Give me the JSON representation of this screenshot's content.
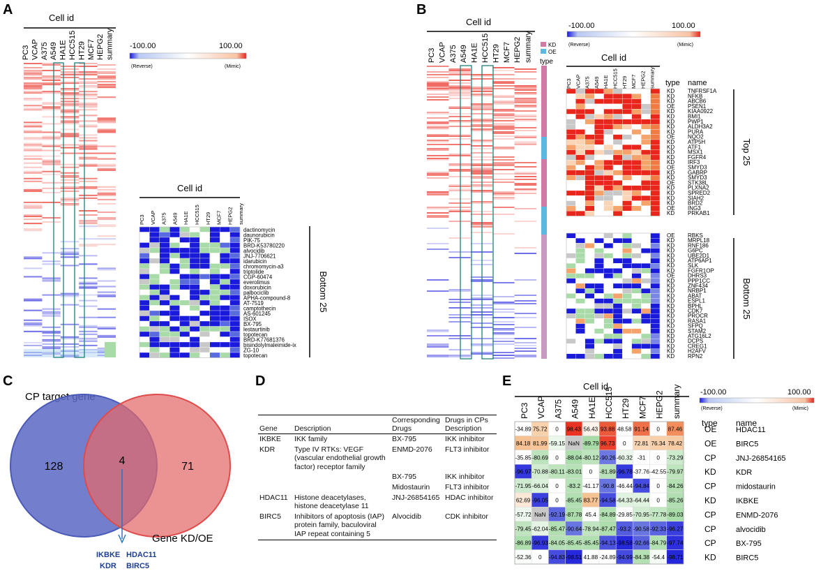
{
  "panels": {
    "A": "A",
    "B": "B",
    "C": "C",
    "D": "D",
    "E": "E"
  },
  "cell_id_label": "Cell id",
  "cell_lines": [
    "PC3",
    "VCAP",
    "A375",
    "A549",
    "HA1E",
    "HCC515",
    "HT29",
    "MCF7",
    "HEPG2",
    "summary"
  ],
  "colorbar": {
    "min_label": "-100.00",
    "max_label": "100.00",
    "min_note": "(Reverse)",
    "max_note": "(Mimic)",
    "low_color": "#1a1adb",
    "mid_color": "#ffffff",
    "high_color": "#e8261b"
  },
  "panel_a": {
    "bottom_label": "Bottom 25",
    "drugs": [
      "dactinomycin",
      "daunorubicin",
      "PIK-75",
      "BRD-K53780220",
      "alvocidib",
      "JNJ-7706621",
      "idarubicin",
      "chromomycin-a3",
      "triptolide",
      "CGP-60474",
      "everolimus",
      "doxorubicin",
      "palbociclib",
      "APHA-compound-8",
      "AT-7519",
      "camptothecin",
      "AS-601245",
      "ISOX",
      "BX-795",
      "lestaurtinib",
      "topotecan",
      "BRD-K77681376",
      "bisindolylmaleimide-ix",
      "ZG-10",
      "topotecan"
    ]
  },
  "panel_b": {
    "legend": [
      {
        "label": "KD",
        "color": "#d27aa6"
      },
      {
        "label": "OE",
        "color": "#5bb8e0"
      }
    ],
    "type_label": "type",
    "name_header": "name",
    "top_label": "Top 25",
    "bottom_label": "Bottom 25",
    "top_genes": [
      [
        "KD",
        "TNFRSF1A"
      ],
      [
        "KD",
        "NFKB"
      ],
      [
        "KD",
        "ABCB6"
      ],
      [
        "OE",
        "PSEN1"
      ],
      [
        "KD",
        "KIAA0922"
      ],
      [
        "KD",
        "BMI1"
      ],
      [
        "KD",
        "PWP1"
      ],
      [
        "KD",
        "ALDH3A2"
      ],
      [
        "KD",
        "PURA"
      ],
      [
        "OE",
        "NQO2"
      ],
      [
        "KD",
        "ATP5H"
      ],
      [
        "KD",
        "ATF1"
      ],
      [
        "KD",
        "MSX1"
      ],
      [
        "KD",
        "FGFR4"
      ],
      [
        "KD",
        "IRF3"
      ],
      [
        "OE",
        "SMYD3"
      ],
      [
        "KD",
        "GABRP"
      ],
      [
        "KD",
        "SMYD3"
      ],
      [
        "OE",
        "STK38L"
      ],
      [
        "KD",
        "PLXNA2"
      ],
      [
        "KD",
        "SPRED2"
      ],
      [
        "KD",
        "SIAH2"
      ],
      [
        "KD",
        "BRD2"
      ],
      [
        "OE",
        "ING3"
      ],
      [
        "KD",
        "PRKAB1"
      ]
    ],
    "bottom_genes": [
      [
        "OE",
        "RBKS"
      ],
      [
        "KD",
        "MRPL18"
      ],
      [
        "KD",
        "RNF186"
      ],
      [
        "KD",
        "G6PC"
      ],
      [
        "KD",
        "UBE2D1"
      ],
      [
        "KD",
        "ATP6AP1"
      ],
      [
        "KD",
        "SLK"
      ],
      [
        "KD",
        "FGFR1OP"
      ],
      [
        "OE",
        "DHRS3"
      ],
      [
        "KD",
        "PPP1CC"
      ],
      [
        "KD",
        "ZNF434"
      ],
      [
        "KD",
        "NRBP1"
      ],
      [
        "KD",
        "ABAT"
      ],
      [
        "KD",
        "ESPL1"
      ],
      [
        "KD",
        "BPHL"
      ],
      [
        "KD",
        "CDK7"
      ],
      [
        "KD",
        "PROCR"
      ],
      [
        "KD",
        "RASA1"
      ],
      [
        "KD",
        "SFPQ"
      ],
      [
        "KD",
        "STAM2"
      ],
      [
        "KD",
        "ATG16L2"
      ],
      [
        "KD",
        "DCPS"
      ],
      [
        "KD",
        "CREG1"
      ],
      [
        "KD",
        "H2AFV"
      ],
      [
        "KD",
        "RPN2"
      ]
    ]
  },
  "panel_c": {
    "left_label": "CP target gene",
    "right_label": "Gene KD/OE",
    "left_only": "128",
    "overlap": "4",
    "right_only": "71",
    "genes": [
      "IKBKE",
      "HDAC11",
      "KDR",
      "BIRC5"
    ],
    "left_color": "#5a68c4",
    "right_color": "#e36a6a"
  },
  "panel_d": {
    "headers": {
      "gene": "Gene",
      "description": "Description",
      "drugs": "Corresponding Drugs",
      "cps": "Drugs in CPs Description"
    },
    "rows": [
      {
        "gene": "IKBKE",
        "description": "IKK family",
        "drugs": "BX-795",
        "cps": "IKK inhibitor"
      },
      {
        "gene": "KDR",
        "description": "Type IV RTKs: VEGF (vascular endothelial growth factor) receptor family",
        "drugs": "ENMD-2076",
        "cps": "FLT3 inhibitor"
      },
      {
        "gene": "",
        "description": "",
        "drugs": "BX-795",
        "cps": "IKK inhibitor"
      },
      {
        "gene": "",
        "description": "",
        "drugs": "Midostaurin",
        "cps": "FLT3 inhibitor"
      },
      {
        "gene": "HDAC11",
        "description": "Histone deacetylases, histone deacetylase 11",
        "drugs": "JNJ-26854165",
        "cps": "HDAC inhibitor"
      },
      {
        "gene": "BIRC5",
        "description": "Inhibitors of apoptosis (IAP) protein family, baculoviral IAP repeat containing 5",
        "drugs": "Alvocidib",
        "cps": "CDK inhibitor"
      }
    ]
  },
  "panel_e": {
    "type_header": "type",
    "name_header": "name",
    "rows": [
      {
        "type": "OE",
        "name": "HDAC11",
        "values": [
          "-34.89",
          "75.72",
          "0",
          "98.43",
          "56.43",
          "93.88",
          "48.58",
          "91.14",
          "0",
          "87.46"
        ]
      },
      {
        "type": "OE",
        "name": "BIRC5",
        "values": [
          "84.18",
          "81.99",
          "-59.15",
          "NaN",
          "-89.79",
          "96.73",
          "0",
          "72.81",
          "76.34",
          "78.42"
        ]
      },
      {
        "type": "CP",
        "name": "JNJ-26854165",
        "values": [
          "-35.85",
          "-80.69",
          "0",
          "-88.04",
          "-80.12",
          "-90.26",
          "-60.32",
          "-31",
          "0",
          "-73.29"
        ]
      },
      {
        "type": "KD",
        "name": "KDR",
        "values": [
          "-96.97",
          "-70.88",
          "-80.11",
          "-83.01",
          "0",
          "-81.89",
          "-96.78",
          "-37.76",
          "-42.55",
          "-79.97"
        ]
      },
      {
        "type": "CP",
        "name": "midostaurin",
        "values": [
          "-71.95",
          "-66.04",
          "0",
          "-83.2",
          "-41.17",
          "-90.8",
          "-46.44",
          "-94.84",
          "0",
          "-84.26"
        ]
      },
      {
        "type": "KD",
        "name": "IKBKE",
        "values": [
          "62.69",
          "-96.05",
          "0",
          "-85.45",
          "83.77",
          "-94.58",
          "-64.33",
          "-64.44",
          "0",
          "-85.26"
        ]
      },
      {
        "type": "CP",
        "name": "ENMD-2076",
        "values": [
          "-57.72",
          "NaN",
          "-92.19",
          "-87.78",
          "45.4",
          "-84.89",
          "-29.85",
          "-70.95",
          "-77.78",
          "-89.03"
        ]
      },
      {
        "type": "CP",
        "name": "alvocidib",
        "values": [
          "-79.45",
          "-62.04",
          "-85.47",
          "-90.64",
          "-78.94",
          "-87.47",
          "-93.2",
          "-90.58",
          "-92.33",
          "-96.27"
        ]
      },
      {
        "type": "CP",
        "name": "BX-795",
        "values": [
          "-86.89",
          "-96.93",
          "-84.05",
          "-85.45",
          "-85.45",
          "-94.13",
          "-98.58",
          "-92.66",
          "-84.79",
          "-97.74"
        ]
      },
      {
        "type": "KD",
        "name": "BIRC5",
        "values": [
          "-52.36",
          "0",
          "-94.83",
          "-98.51",
          "41.88",
          "-24.89",
          "-94.99",
          "-84.38",
          "-54.4",
          "-98.71"
        ]
      }
    ]
  }
}
